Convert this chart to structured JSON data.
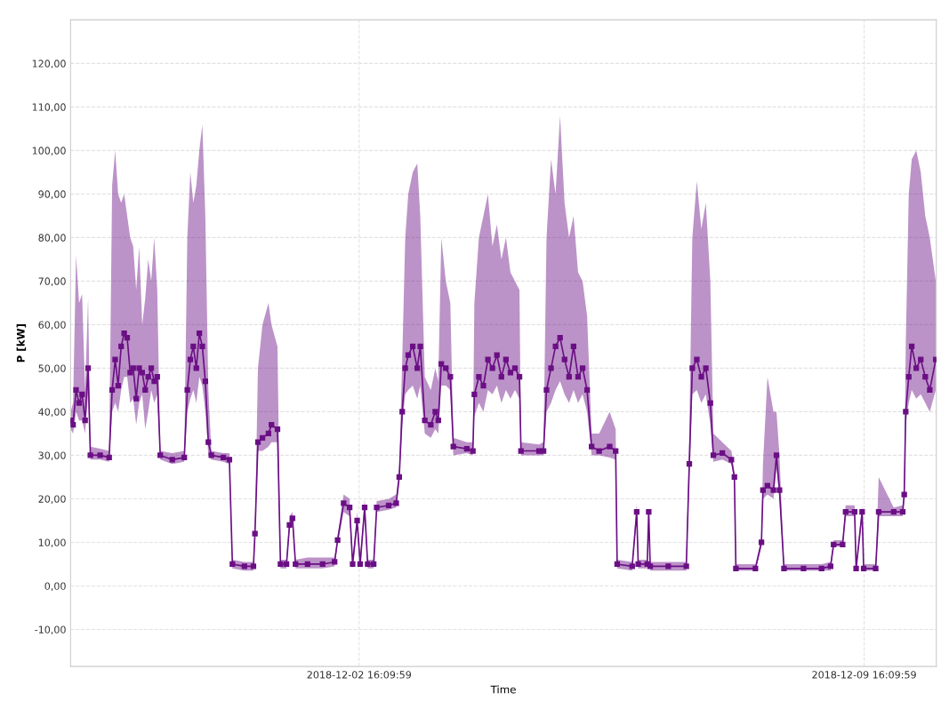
{
  "chart_data": {
    "type": "line",
    "xlabel": "Time",
    "ylabel": "P [kW]",
    "xlim": [
      "2018-11-28T16:10",
      "2018-12-10T16:10"
    ],
    "ylim": [
      -18.5,
      130
    ],
    "xticks": [
      {
        "value": "2018-12-02T16:10",
        "label": "2018-12-02 16:09:59"
      },
      {
        "value": "2018-12-09T16:10",
        "label": "2018-12-09 16:09:59"
      }
    ],
    "yticks": [
      {
        "value": -10,
        "label": "-10,00"
      },
      {
        "value": 0,
        "label": "0,00"
      },
      {
        "value": 10,
        "label": "10,00"
      },
      {
        "value": 20,
        "label": "20,00"
      },
      {
        "value": 30,
        "label": "30,00"
      },
      {
        "value": 40,
        "label": "40,00"
      },
      {
        "value": 50,
        "label": "50,00"
      },
      {
        "value": 60,
        "label": "60,00"
      },
      {
        "value": 70,
        "label": "70,00"
      },
      {
        "value": 80,
        "label": "80,00"
      },
      {
        "value": 90,
        "label": "90,00"
      },
      {
        "value": 100,
        "label": "100,00"
      },
      {
        "value": 110,
        "label": "110,00"
      },
      {
        "value": 120,
        "label": "120,00"
      }
    ],
    "grid": true,
    "marker": "square",
    "line_style": "solid",
    "series": [
      {
        "color": "#6b0f85",
        "x": [
          "2018-11-28T16:10",
          "2018-11-28T17:00",
          "2018-11-28T18:00",
          "2018-11-28T19:00",
          "2018-11-28T20:00",
          "2018-11-28T21:00",
          "2018-11-28T22:00",
          "2018-11-28T22:45",
          "2018-11-29T02:00",
          "2018-11-29T05:00",
          "2018-11-29T06:00",
          "2018-11-29T07:00",
          "2018-11-29T08:00",
          "2018-11-29T09:00",
          "2018-11-29T10:00",
          "2018-11-29T11:00",
          "2018-11-29T12:00",
          "2018-11-29T13:00",
          "2018-11-29T14:00",
          "2018-11-29T15:00",
          "2018-11-29T16:00",
          "2018-11-29T17:00",
          "2018-11-29T18:00",
          "2018-11-29T19:00",
          "2018-11-29T20:00",
          "2018-11-29T21:00",
          "2018-11-29T22:00",
          "2018-11-30T02:00",
          "2018-11-30T06:00",
          "2018-11-30T07:00",
          "2018-11-30T08:00",
          "2018-11-30T09:00",
          "2018-11-30T10:00",
          "2018-11-30T11:00",
          "2018-11-30T12:00",
          "2018-11-30T13:00",
          "2018-11-30T14:00",
          "2018-11-30T15:00",
          "2018-11-30T19:00",
          "2018-11-30T21:00",
          "2018-11-30T22:00",
          "2018-12-01T02:00",
          "2018-12-01T05:00",
          "2018-12-01T05:30",
          "2018-12-01T06:30",
          "2018-12-01T08:00",
          "2018-12-01T10:00",
          "2018-12-01T11:00",
          "2018-12-01T13:00",
          "2018-12-01T14:00",
          "2018-12-01T16:00",
          "2018-12-01T17:00",
          "2018-12-01T18:00",
          "2018-12-01T19:00",
          "2018-12-01T23:00",
          "2018-12-02T04:00",
          "2018-12-02T08:00",
          "2018-12-02T09:00",
          "2018-12-02T11:00",
          "2018-12-02T13:00",
          "2018-12-02T14:00",
          "2018-12-02T15:30",
          "2018-12-02T16:30",
          "2018-12-02T18:00",
          "2018-12-02T19:00",
          "2018-12-02T21:00",
          "2018-12-02T22:00",
          "2018-12-03T02:00",
          "2018-12-03T04:30",
          "2018-12-03T05:30",
          "2018-12-03T06:30",
          "2018-12-03T07:30",
          "2018-12-03T08:30",
          "2018-12-03T10:00",
          "2018-12-03T11:30",
          "2018-12-03T12:30",
          "2018-12-03T14:00",
          "2018-12-03T16:00",
          "2018-12-03T17:30",
          "2018-12-03T18:30",
          "2018-12-03T19:30",
          "2018-12-03T21:00",
          "2018-12-03T22:30",
          "2018-12-03T23:30",
          "2018-12-04T04:00",
          "2018-12-04T06:00",
          "2018-12-04T06:30",
          "2018-12-04T08:00",
          "2018-12-04T09:30",
          "2018-12-04T11:00",
          "2018-12-04T12:30",
          "2018-12-04T14:00",
          "2018-12-04T15:30",
          "2018-12-04T17:00",
          "2018-12-04T18:30",
          "2018-12-04T20:00",
          "2018-12-04T21:30",
          "2018-12-04T22:00",
          "2018-12-05T04:00",
          "2018-12-05T05:30",
          "2018-12-05T06:30",
          "2018-12-05T08:00",
          "2018-12-05T09:30",
          "2018-12-05T11:00",
          "2018-12-05T12:30",
          "2018-12-05T14:00",
          "2018-12-05T15:30",
          "2018-12-05T17:00",
          "2018-12-05T18:30",
          "2018-12-05T20:00",
          "2018-12-05T21:30",
          "2018-12-06T00:00",
          "2018-12-06T03:30",
          "2018-12-06T05:30",
          "2018-12-06T06:00",
          "2018-12-06T11:00",
          "2018-12-06T12:30",
          "2018-12-06T13:00",
          "2018-12-06T16:00",
          "2018-12-06T16:30",
          "2018-12-06T17:00",
          "2018-12-06T23:00",
          "2018-12-07T05:00",
          "2018-12-07T06:00",
          "2018-12-07T07:00",
          "2018-12-07T08:30",
          "2018-12-07T10:00",
          "2018-12-07T11:30",
          "2018-12-07T13:00",
          "2018-12-07T14:00",
          "2018-12-07T17:00",
          "2018-12-07T20:00",
          "2018-12-07T21:00",
          "2018-12-07T21:30",
          "2018-12-08T04:00",
          "2018-12-08T06:00",
          "2018-12-08T06:30",
          "2018-12-08T08:00",
          "2018-12-08T10:00",
          "2018-12-08T11:00",
          "2018-12-08T12:00",
          "2018-12-08T13:30",
          "2018-12-08T20:00",
          "2018-12-09T02:00",
          "2018-12-09T05:00",
          "2018-12-09T06:00",
          "2018-12-09T09:00",
          "2018-12-09T10:00",
          "2018-12-09T13:00",
          "2018-12-09T13:30",
          "2018-12-09T15:30",
          "2018-12-09T16:00",
          "2018-12-09T20:00",
          "2018-12-09T21:00",
          "2018-12-10T02:00",
          "2018-12-10T05:00",
          "2018-12-10T05:30",
          "2018-12-10T06:00",
          "2018-12-10T07:00",
          "2018-12-10T08:00",
          "2018-12-10T09:30",
          "2018-12-10T11:00",
          "2018-12-10T12:30",
          "2018-12-10T14:00",
          "2018-12-10T16:00"
        ],
        "values": [
          38,
          37,
          45,
          42,
          44,
          38,
          50,
          30,
          30,
          29.5,
          45,
          52,
          46,
          55,
          58,
          57,
          49,
          50,
          43,
          50,
          49,
          45,
          48,
          50,
          47,
          48,
          30,
          29,
          29.5,
          45,
          52,
          55,
          50,
          58,
          55,
          47,
          33,
          30,
          29.5,
          29,
          5,
          4.5,
          4.5,
          12,
          33,
          34,
          35,
          37,
          36,
          5,
          5,
          14,
          15.5,
          5,
          5,
          5,
          5.5,
          10.5,
          19,
          18,
          5,
          15,
          5,
          18,
          5,
          5,
          18,
          18.5,
          19,
          25,
          40,
          50,
          53,
          55,
          50,
          55,
          38,
          37,
          40,
          38,
          51,
          50,
          48,
          32,
          31.5,
          31,
          44,
          48,
          46,
          52,
          50,
          53,
          48,
          52,
          49,
          50,
          48,
          31,
          31,
          31,
          45,
          50,
          55,
          57,
          52,
          48,
          55,
          48,
          50,
          45,
          32,
          31,
          32,
          31,
          5,
          4.5,
          17,
          5,
          5,
          17,
          4.5,
          4.5,
          4.5,
          28,
          50,
          52,
          48,
          50,
          42,
          30,
          30.5,
          29,
          25,
          4,
          4,
          10,
          22,
          23,
          22,
          30,
          22,
          4,
          4,
          4,
          4.5,
          9.5,
          9.5,
          17,
          17,
          4,
          17,
          4,
          4,
          17,
          17,
          17,
          21,
          40,
          48,
          55,
          50,
          52,
          48,
          45,
          52
        ],
        "lower": [
          36,
          35,
          40,
          38,
          38,
          35,
          44,
          29,
          29,
          28.5,
          40,
          42,
          40,
          45,
          48,
          48,
          42,
          43,
          37,
          42,
          44,
          36,
          40,
          45,
          42,
          44,
          29,
          28,
          28.5,
          40,
          43,
          45,
          42,
          48,
          46,
          40,
          30,
          29,
          28.5,
          28,
          4,
          3.5,
          3.5,
          11,
          31,
          31,
          32,
          33,
          33,
          4,
          4,
          13,
          14,
          4,
          4,
          4,
          4.5,
          9.5,
          17,
          16,
          4,
          13,
          4,
          16,
          4,
          4,
          17,
          17.5,
          18,
          24,
          37,
          44,
          45,
          46,
          43,
          46,
          35,
          34,
          36,
          35,
          46,
          46,
          45,
          30,
          30.5,
          30,
          39,
          42,
          40,
          45,
          44,
          46,
          42,
          45,
          43,
          45,
          43,
          30,
          30,
          30,
          40,
          42,
          45,
          47,
          44,
          42,
          45,
          42,
          44,
          40,
          30,
          30,
          29.5,
          29,
          4,
          3.5,
          16,
          4,
          4,
          16,
          3.5,
          3.5,
          3.5,
          25,
          44,
          45,
          42,
          44,
          37,
          28.5,
          29,
          28,
          24,
          3.5,
          3.5,
          9,
          20,
          21,
          20,
          27,
          20,
          3.5,
          3.5,
          3.5,
          3.5,
          9,
          9,
          16,
          16,
          3.5,
          16,
          3.5,
          3.5,
          16,
          16,
          16,
          20,
          37,
          42,
          45,
          43,
          44,
          42,
          40,
          45
        ],
        "upper": [
          40,
          42,
          76,
          65,
          67,
          45,
          66,
          32,
          31.5,
          31,
          92,
          100,
          90,
          88,
          90,
          85,
          80,
          78,
          68,
          78,
          60,
          66,
          75,
          70,
          80,
          68,
          31,
          30.5,
          31,
          80,
          95,
          88,
          92,
          100,
          106,
          85,
          45,
          31,
          30.5,
          30.5,
          6,
          5.5,
          5.5,
          13,
          50,
          60,
          65,
          60,
          55,
          6,
          6,
          16,
          17,
          6,
          6.5,
          6.5,
          6.5,
          11.5,
          21,
          20,
          6,
          17,
          6,
          20,
          6,
          6,
          19.5,
          20,
          21,
          27,
          52,
          80,
          90,
          95,
          97,
          85,
          48,
          45,
          50,
          47,
          80,
          70,
          65,
          34,
          33,
          33,
          65,
          80,
          85,
          90,
          78,
          83,
          75,
          80,
          72,
          70,
          68,
          33,
          32.5,
          33,
          80,
          98,
          90,
          108,
          88,
          80,
          85,
          72,
          70,
          62,
          35,
          35,
          40,
          36,
          6,
          5.5,
          19,
          6,
          6,
          18,
          5.5,
          5.5,
          5.5,
          35,
          80,
          93,
          82,
          88,
          70,
          35,
          33,
          31,
          26,
          5,
          5,
          11,
          28,
          48,
          40,
          40,
          30,
          5,
          5,
          5,
          5.5,
          10.5,
          10.5,
          18.5,
          18.5,
          5,
          18.5,
          5,
          5,
          25,
          18,
          18.5,
          23,
          55,
          90,
          98,
          100,
          95,
          85,
          80,
          70
        ]
      }
    ]
  }
}
